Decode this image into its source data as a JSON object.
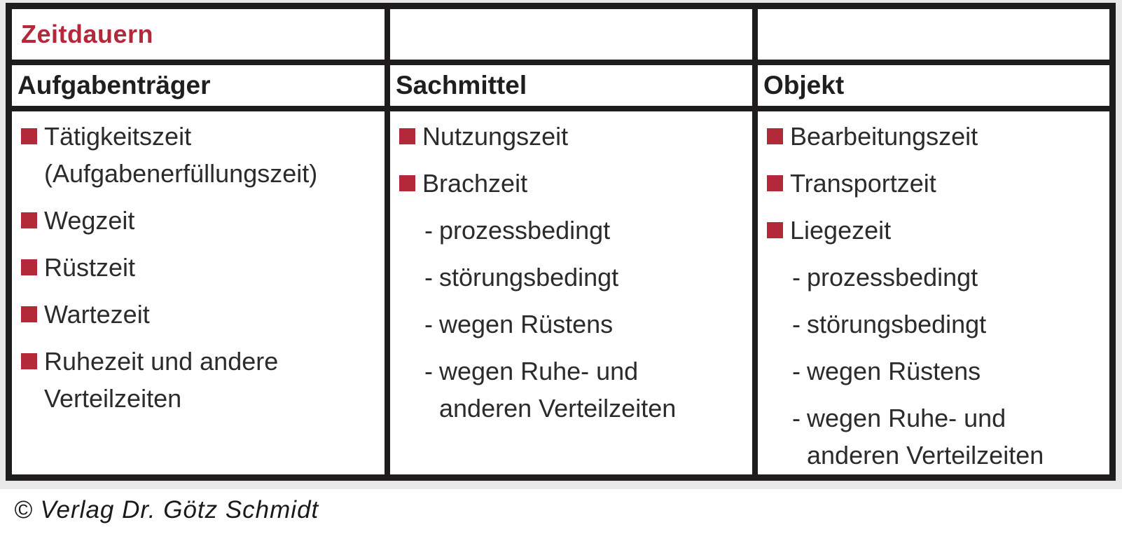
{
  "colors": {
    "accent_red": "#b42939",
    "border_black": "#1e1c1c",
    "margin_gray": "#e8e8e8",
    "text": "#2b2b2b"
  },
  "table": {
    "title": "Zeitdauern",
    "dash_char": "-",
    "columns": [
      {
        "header": "Aufgabenträger",
        "items": [
          {
            "type": "bullet",
            "lines": [
              "Tätigkeitszeit",
              "(Aufgabenerfüllungszeit)"
            ]
          },
          {
            "type": "bullet",
            "lines": [
              "Wegzeit"
            ]
          },
          {
            "type": "bullet",
            "lines": [
              "Rüstzeit"
            ]
          },
          {
            "type": "bullet",
            "lines": [
              "Wartezeit"
            ]
          },
          {
            "type": "bullet",
            "lines": [
              "Ruhezeit und andere",
              "Verteilzeiten"
            ]
          }
        ]
      },
      {
        "header": "Sachmittel",
        "items": [
          {
            "type": "bullet",
            "lines": [
              "Nutzungszeit"
            ]
          },
          {
            "type": "bullet",
            "lines": [
              "Brachzeit"
            ]
          },
          {
            "type": "dash",
            "lines": [
              "prozessbedingt"
            ]
          },
          {
            "type": "dash",
            "lines": [
              "störungsbedingt"
            ]
          },
          {
            "type": "dash",
            "lines": [
              "wegen Rüstens"
            ]
          },
          {
            "type": "dash",
            "lines": [
              "wegen Ruhe- und",
              "anderen Verteilzeiten"
            ]
          }
        ]
      },
      {
        "header": "Objekt",
        "items": [
          {
            "type": "bullet",
            "lines": [
              "Bearbeitungszeit"
            ]
          },
          {
            "type": "bullet",
            "lines": [
              "Transportzeit"
            ]
          },
          {
            "type": "bullet",
            "lines": [
              "Liegezeit"
            ]
          },
          {
            "type": "dash",
            "lines": [
              "prozessbedingt"
            ]
          },
          {
            "type": "dash",
            "lines": [
              "störungsbedingt"
            ]
          },
          {
            "type": "dash",
            "lines": [
              "wegen Rüstens"
            ]
          },
          {
            "type": "dash",
            "lines": [
              "wegen Ruhe- und",
              "anderen Verteilzeiten"
            ]
          }
        ]
      }
    ]
  },
  "footer": {
    "copyright": "© Verlag Dr. Götz Schmidt"
  }
}
